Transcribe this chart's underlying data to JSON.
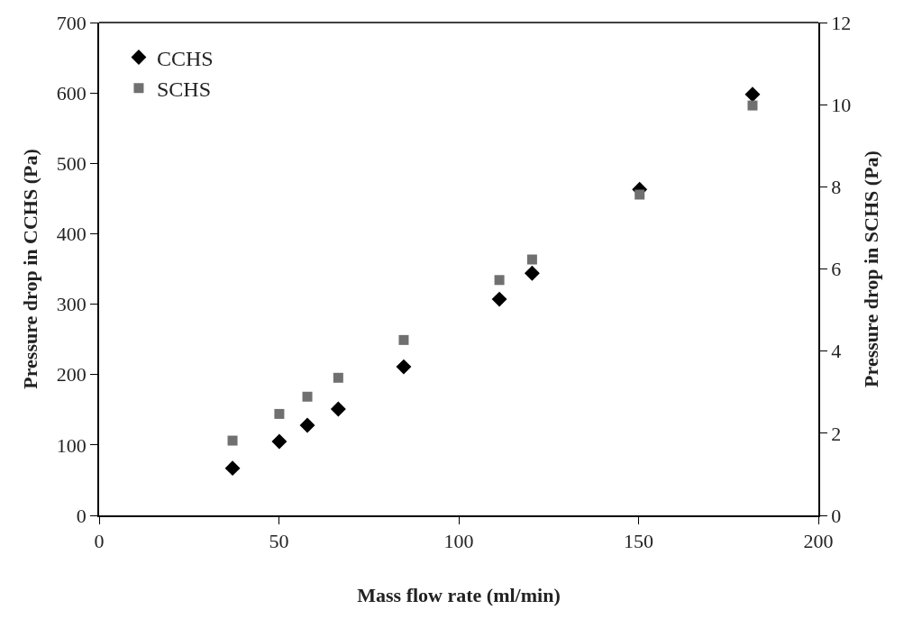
{
  "chart_data": {
    "type": "scatter",
    "xlabel": "Mass flow rate (ml/min)",
    "ylabel": "Pressure drop in CCHS (Pa)",
    "y2label": "Pressure drop in SCHS (Pa)",
    "series": [
      {
        "name": "CCHS",
        "color": "#000000",
        "marker": "diamond",
        "x": [
          37.1,
          50.1,
          57.9,
          66.5,
          84.7,
          111.3,
          120.4,
          150.3,
          181.7
        ],
        "values": [
          67,
          105,
          128,
          151,
          211,
          307,
          344,
          463,
          598
        ]
      },
      {
        "name": "SCHS",
        "color": "#707070",
        "marker": "square",
        "axis": "y2",
        "x": [
          37.1,
          50.1,
          57.9,
          66.5,
          84.7,
          111.3,
          120.4,
          150.3,
          181.7
        ],
        "values": [
          1.82,
          2.47,
          2.89,
          3.35,
          4.27,
          5.73,
          6.23,
          7.81,
          9.98
        ]
      }
    ],
    "xlim": [
      0,
      200
    ],
    "xticks": [
      0,
      50,
      100,
      150,
      200
    ],
    "ylim": [
      0,
      700
    ],
    "yticks": [
      0,
      100,
      200,
      300,
      400,
      500,
      600,
      700
    ],
    "y2lim": [
      0,
      12
    ],
    "y2ticks": [
      0,
      2,
      4,
      6,
      8,
      10,
      12
    ],
    "legend": "top left"
  }
}
